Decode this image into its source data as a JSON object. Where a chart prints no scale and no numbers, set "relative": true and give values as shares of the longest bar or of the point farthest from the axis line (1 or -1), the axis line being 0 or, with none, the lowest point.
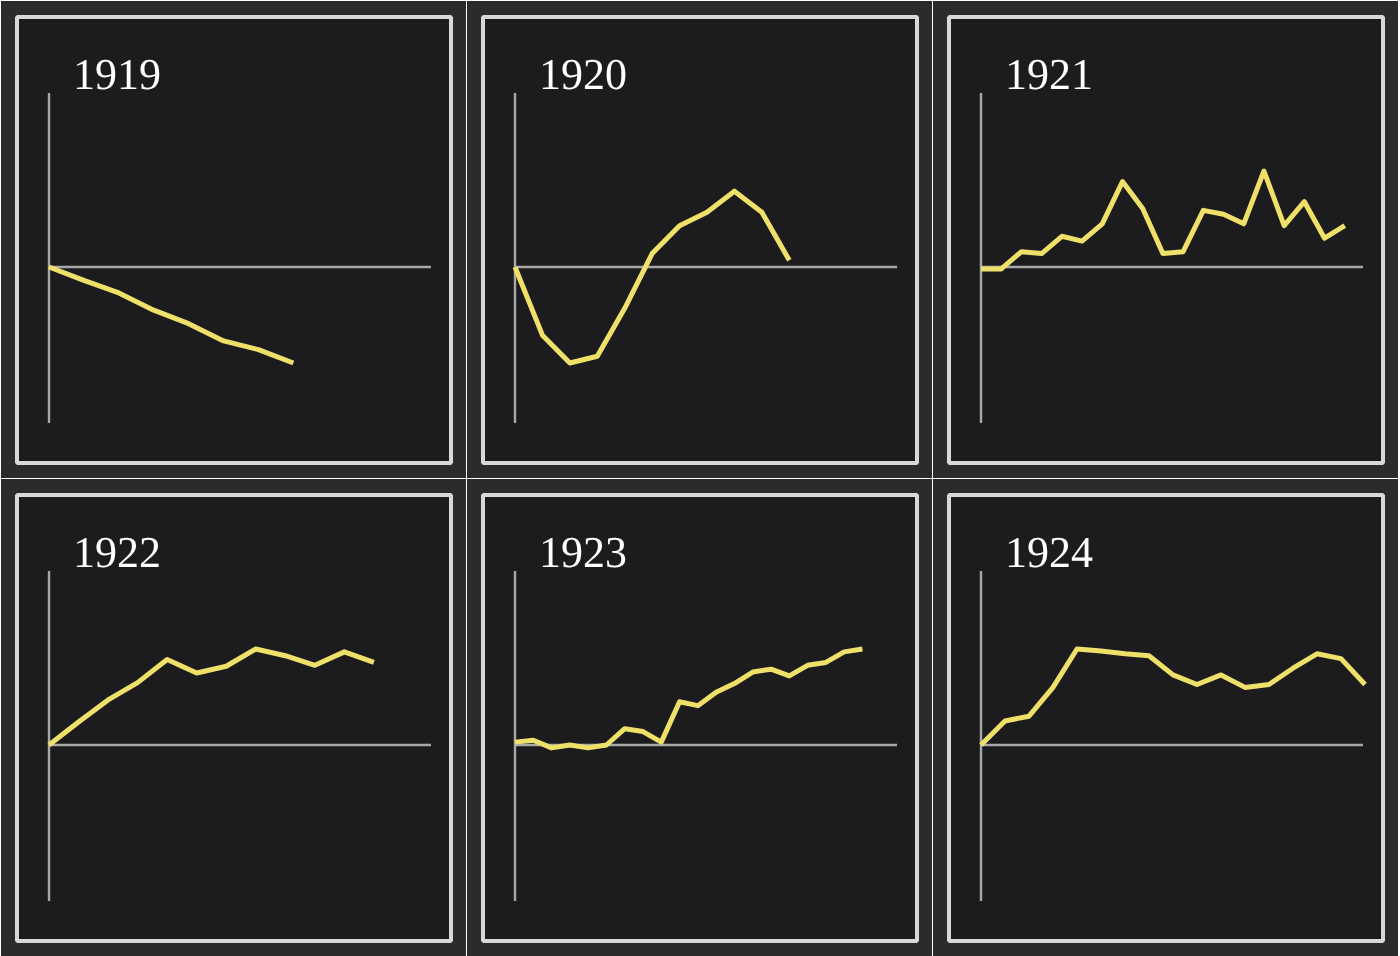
{
  "chart_data": [
    {
      "type": "line",
      "title": "1919",
      "relative": true,
      "categories": [
        null,
        null,
        null,
        null,
        null,
        null,
        null,
        null,
        null,
        null,
        null,
        null
      ],
      "series": [
        {
          "color": "#efe06a",
          "values": [
            0,
            -0.14,
            -0.27,
            -0.45,
            -0.59,
            -0.77,
            -0.86,
            -1,
            null,
            null,
            null,
            null
          ]
        }
      ]
    },
    {
      "type": "line",
      "title": "1920",
      "relative": true,
      "categories": [
        null,
        null,
        null,
        null,
        null,
        null,
        null,
        null,
        null,
        null,
        null,
        null,
        null,
        null,
        null
      ],
      "series": [
        {
          "color": "#efe06a",
          "values": [
            0,
            -0.71,
            -1,
            -0.93,
            -0.43,
            0.14,
            0.43,
            0.57,
            0.79,
            0.57,
            0.07,
            null,
            null,
            null,
            null
          ]
        }
      ]
    },
    {
      "type": "line",
      "title": "1921",
      "relative": true,
      "categories": [
        null,
        null,
        null,
        null,
        null,
        null,
        null,
        null,
        null,
        null,
        null,
        null,
        null,
        null,
        null,
        null,
        null,
        null,
        null,
        null
      ],
      "series": [
        {
          "color": "#efe06a",
          "values": [
            -0.02,
            -0.02,
            0.16,
            0.14,
            0.32,
            0.27,
            0.45,
            0.89,
            0.61,
            0.14,
            0.16,
            0.59,
            0.55,
            0.45,
            1,
            0.43,
            0.68,
            0.3,
            0.43,
            null
          ]
        }
      ]
    },
    {
      "type": "line",
      "title": "1922",
      "relative": true,
      "categories": [
        null,
        null,
        null,
        null,
        null,
        null,
        null,
        null,
        null,
        null,
        null,
        null,
        null,
        null
      ],
      "series": [
        {
          "color": "#efe06a",
          "values": [
            0,
            0.24,
            0.47,
            0.65,
            0.89,
            0.75,
            0.82,
            1,
            0.93,
            0.83,
            0.97,
            0.86,
            null,
            null
          ]
        }
      ]
    },
    {
      "type": "line",
      "title": "1923",
      "relative": true,
      "categories": [
        null,
        null,
        null,
        null,
        null,
        null,
        null,
        null,
        null,
        null,
        null,
        null,
        null,
        null,
        null,
        null,
        null,
        null,
        null,
        null,
        null,
        null
      ],
      "series": [
        {
          "color": "#efe06a",
          "values": [
            0.03,
            0.05,
            -0.03,
            0,
            -0.03,
            0,
            0.17,
            0.14,
            0.03,
            0.45,
            0.41,
            0.55,
            0.64,
            0.76,
            0.79,
            0.72,
            0.83,
            0.86,
            0.97,
            1,
            null,
            null
          ]
        }
      ]
    },
    {
      "type": "line",
      "title": "1924",
      "relative": true,
      "categories": [
        null,
        null,
        null,
        null,
        null,
        null,
        null,
        null,
        null,
        null,
        null,
        null,
        null,
        null,
        null,
        null,
        null
      ],
      "series": [
        {
          "color": "#efe06a",
          "values": [
            0,
            0.25,
            0.3,
            0.6,
            1,
            0.98,
            0.95,
            0.93,
            0.73,
            0.63,
            0.73,
            0.6,
            0.63,
            0.8,
            0.95,
            0.9,
            0.63
          ]
        }
      ]
    }
  ]
}
